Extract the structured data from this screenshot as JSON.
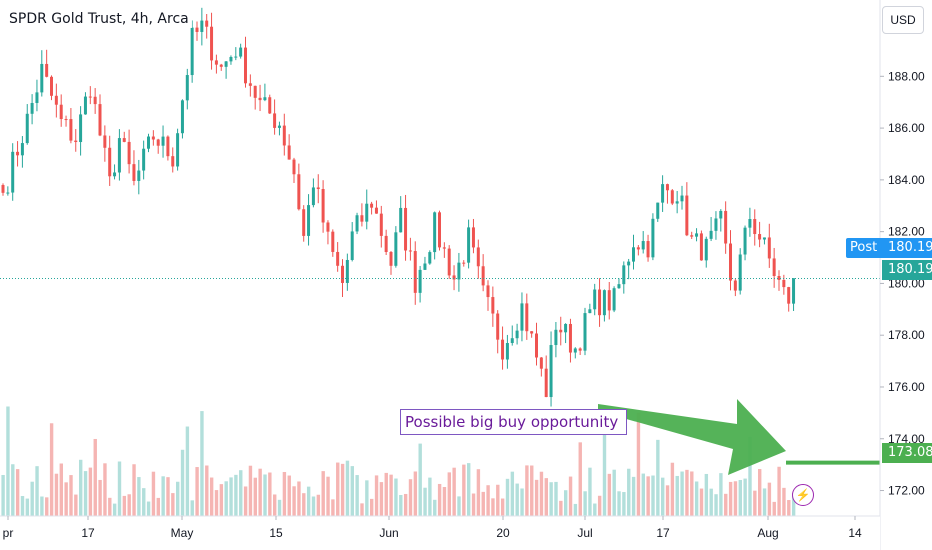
{
  "header": {
    "title": "SPDR Gold Trust, 4h, Arca",
    "currency": "USD"
  },
  "price_tags": {
    "post_label": "Post",
    "post_value": "180.19",
    "last_value": "180.19",
    "line_value": "173.08"
  },
  "annotation": {
    "text": "Possible big buy opportunity"
  },
  "colors": {
    "up": "#26a69a",
    "down": "#ef5350",
    "up_volume": "#b2dfdb",
    "down_volume": "#f5b5b3",
    "post": "#2196f3",
    "arrow": "#4caf50",
    "annotation_border": "#7e57c2",
    "annotation_text": "#6a1b9a"
  },
  "chart_data": {
    "type": "candlestick",
    "title": "SPDR Gold Trust, 4h, Arca",
    "y_axis": {
      "side": "right",
      "ticks": [
        "188.00",
        "186.00",
        "184.00",
        "182.00",
        "180.00",
        "178.00",
        "176.00",
        "174.00",
        "172.00"
      ],
      "range": [
        170.8,
        190.6
      ]
    },
    "x_axis": {
      "ticks": [
        "pr",
        "17",
        "May",
        "15",
        "Jun",
        "20",
        "Jul",
        "17",
        "Aug",
        "14"
      ]
    },
    "waypoints": [
      [
        0,
        183.5
      ],
      [
        5,
        186.3
      ],
      [
        8,
        188.2
      ],
      [
        12,
        186.2
      ],
      [
        15,
        185.6
      ],
      [
        18,
        187.7
      ],
      [
        22,
        183.8
      ],
      [
        24,
        185.6
      ],
      [
        27,
        183.8
      ],
      [
        31,
        185.7
      ],
      [
        35,
        184.9
      ],
      [
        39,
        189.4
      ],
      [
        41,
        189.9
      ],
      [
        45,
        188.3
      ],
      [
        48,
        189.1
      ],
      [
        53,
        186.9
      ],
      [
        57,
        186.2
      ],
      [
        60,
        184.3
      ],
      [
        62,
        181.8
      ],
      [
        64,
        184.0
      ],
      [
        67,
        181.6
      ],
      [
        70,
        180.0
      ],
      [
        72,
        181.8
      ],
      [
        76,
        183.2
      ],
      [
        80,
        180.8
      ],
      [
        82,
        182.5
      ],
      [
        85,
        180.1
      ],
      [
        89,
        182.2
      ],
      [
        93,
        180.2
      ],
      [
        96,
        181.7
      ],
      [
        99,
        179.5
      ],
      [
        103,
        177.6
      ],
      [
        107,
        179.1
      ],
      [
        111,
        176.5
      ],
      [
        112,
        175.9
      ],
      [
        114,
        178.5
      ],
      [
        118,
        177.5
      ],
      [
        122,
        179.3
      ],
      [
        126,
        179.3
      ],
      [
        130,
        181.7
      ],
      [
        133,
        181.5
      ],
      [
        136,
        183.6
      ],
      [
        139,
        183.6
      ],
      [
        142,
        181.6
      ],
      [
        145,
        181.3
      ],
      [
        148,
        182.3
      ],
      [
        150,
        180.2
      ],
      [
        151,
        180.0
      ],
      [
        154,
        182.6
      ],
      [
        156,
        181.8
      ],
      [
        158,
        180.9
      ],
      [
        160,
        180.0
      ],
      [
        161,
        179.6
      ],
      [
        162,
        179.4
      ],
      [
        163,
        180.2
      ]
    ],
    "volume_bars": {
      "note": "volume shown as relative bars",
      "count": 164,
      "spike_indices": [
        1,
        10,
        38,
        41,
        124,
        131,
        154
      ]
    },
    "annotations": [
      {
        "type": "text-box",
        "text": "Possible big buy opportunity"
      },
      {
        "type": "arrow",
        "from": "annotation box",
        "to": "volume spike near Aug"
      },
      {
        "type": "horizontal-line",
        "value": 173.08
      }
    ],
    "last_price": 180.19,
    "post_price": 180.19,
    "grid": false
  }
}
